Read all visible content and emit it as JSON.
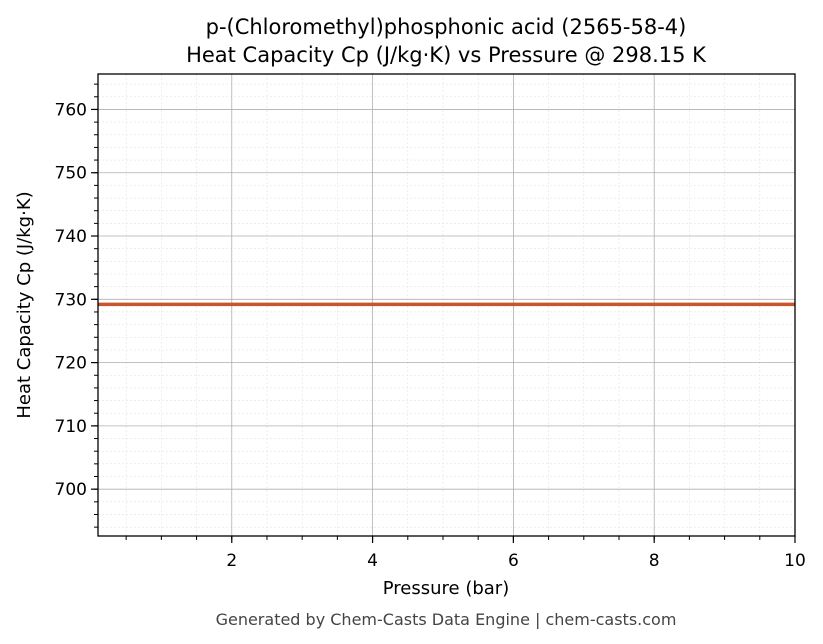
{
  "chart_data": {
    "type": "line",
    "title_line1": "p-(Chloromethyl)phosphonic acid (2565-58-4)",
    "title_line2": "Heat Capacity Cp (J/kg·K) vs Pressure @ 298.15 K",
    "xlabel": "Pressure (bar)",
    "ylabel": "Heat Capacity Cp (J/kg·K)",
    "xlim": [
      0.1,
      10
    ],
    "ylim": [
      692.6,
      765.6
    ],
    "xticks": [
      2,
      4,
      6,
      8,
      10
    ],
    "yticks": [
      700,
      710,
      720,
      730,
      740,
      750,
      760
    ],
    "grid": true,
    "minor_grid": true,
    "series": [
      {
        "x": [
          0.1,
          1,
          2,
          3,
          4,
          5,
          6,
          7,
          8,
          9,
          10
        ],
        "y": [
          729.2,
          729.2,
          729.2,
          729.2,
          729.2,
          729.2,
          729.2,
          729.2,
          729.2,
          729.2,
          729.2
        ],
        "color": "#c8552b"
      }
    ]
  },
  "footer": "Generated by Chem-Casts Data Engine | chem-casts.com"
}
